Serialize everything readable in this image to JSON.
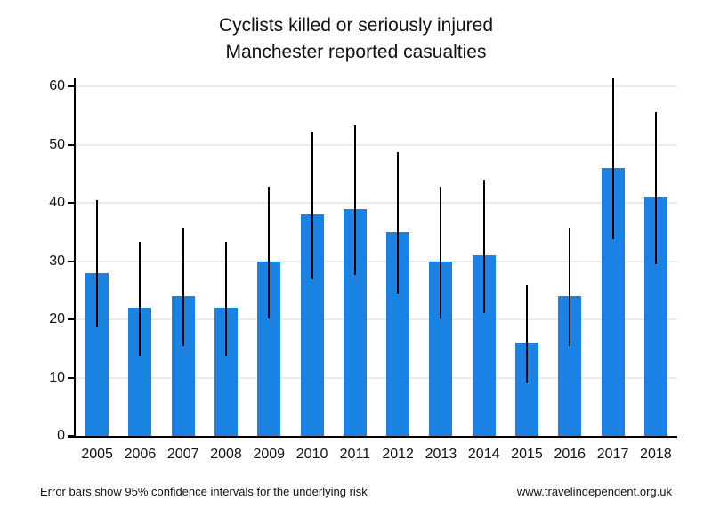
{
  "title": {
    "line1": "Cyclists killed or seriously injured",
    "line2": "Manchester reported casualties"
  },
  "footer": {
    "note": "Error bars show 95% confidence intervals for the underlying risk",
    "website": "www.travelindependent.org.uk"
  },
  "colors": {
    "bar": "#1a82e2",
    "error_bar": "#000000",
    "gridline": "#ebebeb",
    "axis": "#000000"
  },
  "chart_data": {
    "type": "bar",
    "title": "Cyclists killed or seriously injured",
    "subtitle": "Manchester reported casualties",
    "categories": [
      "2005",
      "2006",
      "2007",
      "2008",
      "2009",
      "2010",
      "2011",
      "2012",
      "2013",
      "2014",
      "2015",
      "2016",
      "2017",
      "2018"
    ],
    "values": [
      28,
      22,
      24,
      22,
      30,
      38,
      39,
      35,
      30,
      31,
      16,
      24,
      46,
      41
    ],
    "error_bars": {
      "label": "95% confidence interval",
      "low": [
        18.6,
        13.8,
        15.4,
        13.8,
        20.2,
        26.9,
        27.7,
        24.4,
        20.2,
        21.1,
        9.1,
        15.4,
        33.7,
        29.4
      ],
      "high": [
        40.5,
        33.3,
        35.7,
        33.3,
        42.8,
        52.2,
        53.3,
        48.7,
        42.8,
        44.0,
        26.0,
        35.7,
        61.4,
        55.6
      ]
    },
    "xlabel": "",
    "ylabel": "",
    "ylim": [
      0,
      60
    ],
    "yticks": [
      0,
      10,
      20,
      30,
      40,
      50,
      60
    ],
    "grid": "horizontal",
    "legend": "none",
    "bar_color": "#1a82e2",
    "error_bar_color": "#000000"
  }
}
